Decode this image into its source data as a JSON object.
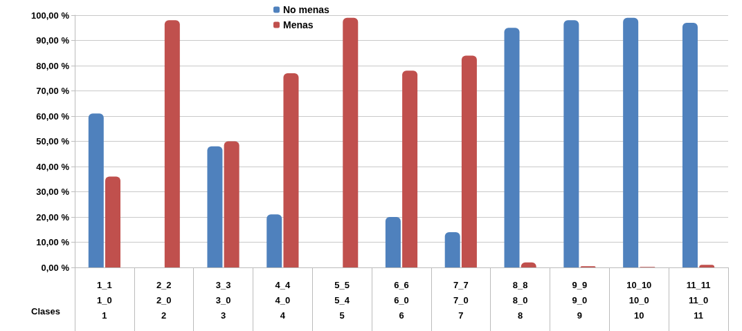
{
  "chart_data": {
    "type": "bar",
    "categories": [
      "1_1\n1_0\n1",
      "2_2\n2_0\n2",
      "3_3\n3_0\n3",
      "4_4\n4_0\n4",
      "5_5\n5_4\n5",
      "6_6\n6_0\n6",
      "7_7\n7_0\n7",
      "8_8\n8_0\n8",
      "9_9\n9_0\n9",
      "10_10\n10_0\n10",
      "11_11\n11_0\n11"
    ],
    "xlabel": "Clases",
    "series": [
      {
        "name": "No menas",
        "color": "#4f81bd",
        "values": [
          61,
          0,
          48,
          21,
          null,
          20,
          14,
          95,
          98,
          99,
          97
        ]
      },
      {
        "name": "Menas",
        "color": "#c0504d",
        "values": [
          36,
          98,
          50,
          77,
          99,
          78,
          84,
          2,
          0.5,
          0.2,
          1
        ]
      }
    ],
    "ylim": [
      0,
      100
    ],
    "yticks": [
      {
        "value": 0,
        "label": "0,00 %"
      },
      {
        "value": 10,
        "label": "10,00 %"
      },
      {
        "value": 20,
        "label": "20,00 %"
      },
      {
        "value": 30,
        "label": "30,00 %"
      },
      {
        "value": 40,
        "label": "40,00 %"
      },
      {
        "value": 50,
        "label": "50,00 %"
      },
      {
        "value": 60,
        "label": "60,00 %"
      },
      {
        "value": 70,
        "label": "70,00 %"
      },
      {
        "value": 80,
        "label": "80,00 %"
      },
      {
        "value": 90,
        "label": "90,00 %"
      },
      {
        "value": 100,
        "label": "100,00 %"
      }
    ],
    "grid": true,
    "legend": "top"
  }
}
